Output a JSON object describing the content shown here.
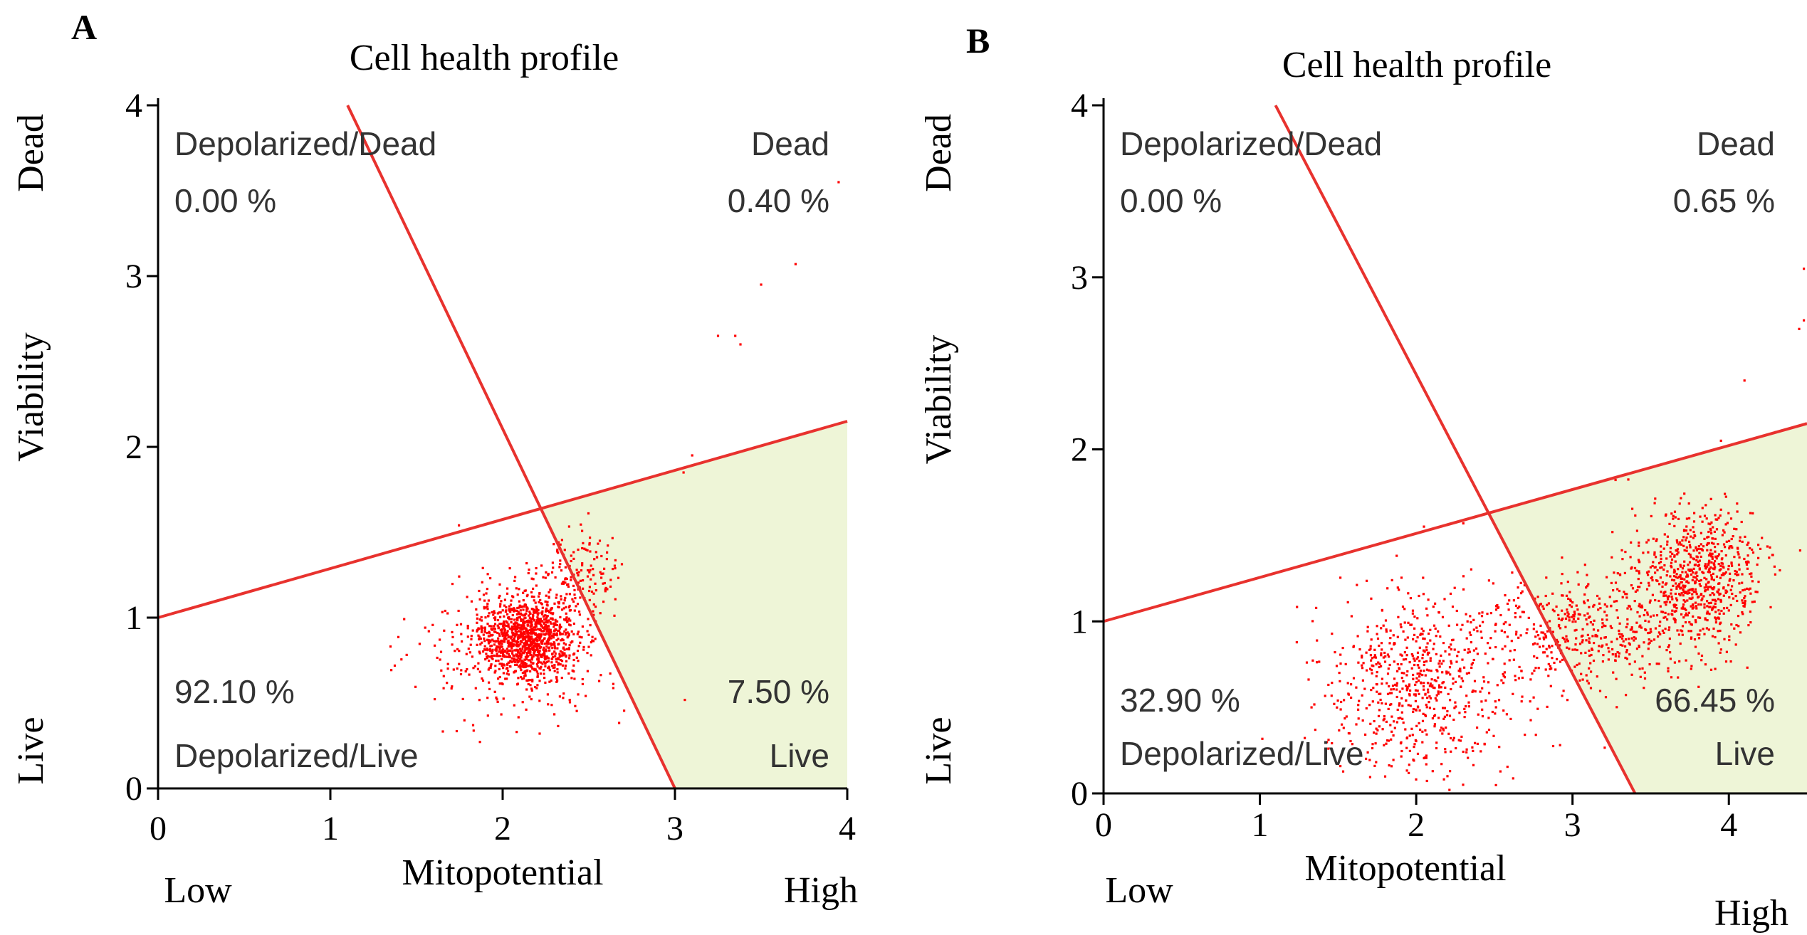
{
  "chart_data": [
    {
      "type": "scatter",
      "panel_label": "A",
      "title": "Cell health profile",
      "xlabel": "Mitopotential",
      "ylabel": "Viability",
      "x_low_label": "Low",
      "x_high_label": "High",
      "y_top_label": "Dead",
      "y_bottom_label": "Live",
      "xlim": [
        0,
        4
      ],
      "ylim": [
        0,
        4
      ],
      "x_ticks": [
        "0",
        "1",
        "2",
        "3",
        "4"
      ],
      "y_ticks": [
        "0",
        "1",
        "2",
        "3",
        "4"
      ],
      "quadrants": {
        "top_left": {
          "name": "Depolarized/Dead",
          "percent": "0.00 %"
        },
        "top_right": {
          "name": "Dead",
          "percent": "0.40 %"
        },
        "bottom_left": {
          "name": "Depolarized/Live",
          "percent": "92.10 %"
        },
        "bottom_right": {
          "name": "Live",
          "percent": "7.50 %"
        }
      },
      "gate_lines": [
        {
          "name": "viability-gate",
          "from": [
            0,
            1.0
          ],
          "to": [
            4,
            2.15
          ]
        },
        {
          "name": "mitopotential-gate",
          "from": [
            1.1,
            4
          ],
          "to": [
            3.0,
            0
          ]
        }
      ],
      "populations": [
        {
          "name": "main cluster",
          "center": [
            2.15,
            0.88
          ],
          "spread": [
            0.14,
            0.12
          ],
          "count": 1100
        },
        {
          "name": "loose cluster",
          "center": [
            2.05,
            0.82
          ],
          "spread": [
            0.28,
            0.22
          ],
          "count": 260
        },
        {
          "name": "tail to live",
          "center": [
            2.45,
            1.25
          ],
          "spread": [
            0.12,
            0.12
          ],
          "count": 140
        }
      ],
      "outliers": [
        [
          3.25,
          2.65
        ],
        [
          3.35,
          2.65
        ],
        [
          3.38,
          2.6
        ],
        [
          3.5,
          2.95
        ],
        [
          3.7,
          3.07
        ],
        [
          3.95,
          3.55
        ],
        [
          3.1,
          1.95
        ],
        [
          3.05,
          1.85
        ]
      ],
      "colors": {
        "points": "#ff0000",
        "gate": "#e8322e",
        "live_region": "#eef5d7"
      }
    },
    {
      "type": "scatter",
      "panel_label": "B",
      "title": "Cell health profile",
      "xlabel": "Mitopotential",
      "ylabel": "Viability",
      "x_low_label": "Low",
      "x_high_label": "High",
      "y_top_label": "Dead",
      "y_bottom_label": "Live",
      "xlim": [
        0,
        4.5
      ],
      "ylim": [
        0,
        4
      ],
      "x_ticks": [
        "0",
        "1",
        "2",
        "3",
        "4"
      ],
      "y_ticks": [
        "0",
        "1",
        "2",
        "3",
        "4"
      ],
      "quadrants": {
        "top_left": {
          "name": "Depolarized/Dead",
          "percent": "0.00 %"
        },
        "top_right": {
          "name": "Dead",
          "percent": "0.65 %"
        },
        "bottom_left": {
          "name": "Depolarized/Live",
          "percent": "32.90 %"
        },
        "bottom_right": {
          "name": "Live",
          "percent": "66.45 %"
        }
      },
      "gate_lines": [
        {
          "name": "viability-gate",
          "from": [
            0,
            1.0
          ],
          "to": [
            4.5,
            2.15
          ]
        },
        {
          "name": "mitopotential-gate",
          "from": [
            1.1,
            4
          ],
          "to": [
            3.4,
            0
          ]
        }
      ],
      "populations": [
        {
          "name": "high mitopotential cluster",
          "center": [
            3.8,
            1.25
          ],
          "spread": [
            0.2,
            0.2
          ],
          "count": 700
        },
        {
          "name": "bridge population",
          "center": [
            3.1,
            0.95
          ],
          "spread": [
            0.38,
            0.16
          ],
          "count": 450
        },
        {
          "name": "depolarized population",
          "center": [
            2.05,
            0.65
          ],
          "spread": [
            0.32,
            0.28
          ],
          "count": 700
        }
      ],
      "outliers": [
        [
          4.48,
          3.05
        ],
        [
          4.48,
          2.75
        ],
        [
          4.45,
          2.7
        ],
        [
          4.1,
          2.4
        ],
        [
          3.95,
          2.05
        ],
        [
          4.3,
          2.1
        ],
        [
          2.2,
          0.1
        ],
        [
          2.3,
          0.05
        ]
      ],
      "colors": {
        "points": "#ff0000",
        "gate": "#e8322e",
        "live_region": "#eef5d7"
      }
    }
  ]
}
